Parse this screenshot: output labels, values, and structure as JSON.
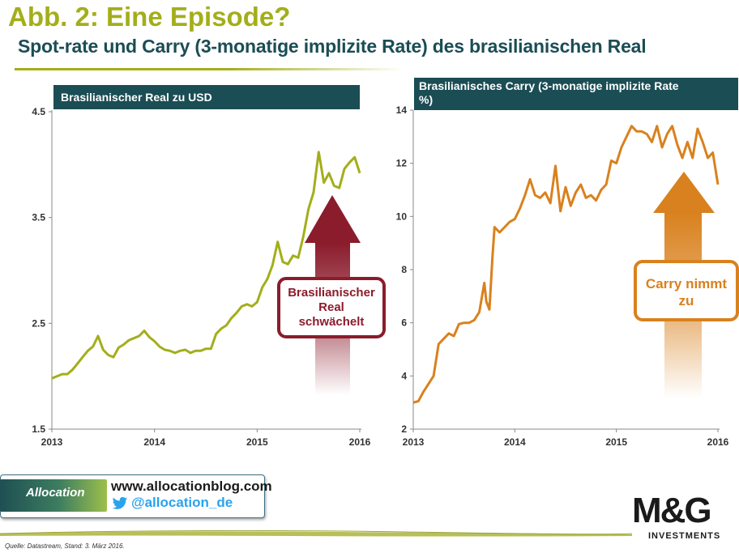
{
  "header": {
    "title": "Abb. 2: Eine Episode?",
    "subtitle": "Spot-rate und Carry (3-monatige implizite Rate) des brasilianischen Real"
  },
  "colors": {
    "title_green": "#a3ae1a",
    "teal": "#1b4d55",
    "brl_line": "#a3ae1a",
    "carry_line": "#d9811e",
    "arrow_red": "#8b1c2c",
    "arrow_orange": "#d9811e"
  },
  "chart_data": [
    {
      "type": "line",
      "title": "Brasilianischer Real zu USD",
      "xlabel": "",
      "ylabel": "",
      "x_ticks": [
        "2013",
        "2014",
        "2015",
        "2016"
      ],
      "y_ticks": [
        "1.5",
        "2.5",
        "3.5",
        "4.5"
      ],
      "xlim": [
        2013.0,
        2016.0
      ],
      "ylim": [
        1.5,
        4.5
      ],
      "grid": false,
      "series": [
        {
          "x": [
            2013.0,
            2013.05,
            2013.1,
            2013.15,
            2013.2,
            2013.25,
            2013.3,
            2013.35,
            2013.4,
            2013.45,
            2013.5,
            2013.55,
            2013.6,
            2013.65,
            2013.7,
            2013.75,
            2013.8,
            2013.85,
            2013.9,
            2013.95,
            2014.0,
            2014.05,
            2014.1,
            2014.15,
            2014.2,
            2014.25,
            2014.3,
            2014.35,
            2014.4,
            2014.45,
            2014.5,
            2014.55,
            2014.6,
            2014.65,
            2014.7,
            2014.75,
            2014.8,
            2014.85,
            2014.9,
            2014.95,
            2015.0,
            2015.05,
            2015.1,
            2015.15,
            2015.2,
            2015.25,
            2015.3,
            2015.35,
            2015.4,
            2015.45,
            2015.5,
            2015.55,
            2015.6,
            2015.65,
            2015.7,
            2015.75,
            2015.8,
            2015.85,
            2015.9,
            2015.95,
            2016.0
          ],
          "values": [
            1.98,
            2.0,
            2.02,
            2.02,
            2.06,
            2.12,
            2.18,
            2.24,
            2.28,
            2.38,
            2.25,
            2.2,
            2.18,
            2.27,
            2.3,
            2.34,
            2.36,
            2.38,
            2.43,
            2.37,
            2.33,
            2.28,
            2.25,
            2.24,
            2.22,
            2.24,
            2.25,
            2.22,
            2.24,
            2.24,
            2.26,
            2.26,
            2.4,
            2.45,
            2.48,
            2.55,
            2.6,
            2.66,
            2.68,
            2.66,
            2.7,
            2.84,
            2.92,
            3.05,
            3.27,
            3.08,
            3.06,
            3.14,
            3.12,
            3.32,
            3.58,
            3.74,
            4.12,
            3.83,
            3.92,
            3.8,
            3.78,
            3.96,
            4.02,
            4.07,
            3.92
          ]
        }
      ]
    },
    {
      "type": "line",
      "title": "Brasilianisches Carry (3-monatige implizite Rate %)",
      "xlabel": "",
      "ylabel": "",
      "x_ticks": [
        "2013",
        "2014",
        "2015",
        "2016"
      ],
      "y_ticks": [
        "2",
        "4",
        "6",
        "8",
        "10",
        "12",
        "14"
      ],
      "xlim": [
        2013.0,
        2016.0
      ],
      "ylim": [
        2,
        14
      ],
      "grid": false,
      "series": [
        {
          "x": [
            2013.0,
            2013.05,
            2013.1,
            2013.15,
            2013.2,
            2013.25,
            2013.3,
            2013.35,
            2013.4,
            2013.45,
            2013.5,
            2013.55,
            2013.6,
            2013.65,
            2013.7,
            2013.72,
            2013.75,
            2013.78,
            2013.8,
            2013.85,
            2013.9,
            2013.95,
            2014.0,
            2014.05,
            2014.1,
            2014.15,
            2014.2,
            2014.25,
            2014.3,
            2014.35,
            2014.4,
            2014.45,
            2014.5,
            2014.55,
            2014.6,
            2014.65,
            2014.7,
            2014.75,
            2014.8,
            2014.85,
            2014.9,
            2014.95,
            2015.0,
            2015.05,
            2015.1,
            2015.15,
            2015.2,
            2015.25,
            2015.3,
            2015.35,
            2015.4,
            2015.45,
            2015.5,
            2015.55,
            2015.6,
            2015.65,
            2015.7,
            2015.75,
            2015.8,
            2015.85,
            2015.9,
            2015.95,
            2016.0
          ],
          "values": [
            3.0,
            3.05,
            3.4,
            3.7,
            4.0,
            5.2,
            5.4,
            5.6,
            5.5,
            5.95,
            6.0,
            6.0,
            6.1,
            6.4,
            7.5,
            6.8,
            6.5,
            8.5,
            9.6,
            9.4,
            9.6,
            9.8,
            9.9,
            10.3,
            10.8,
            11.4,
            10.8,
            10.7,
            10.9,
            10.5,
            11.9,
            10.2,
            11.1,
            10.4,
            10.9,
            11.2,
            10.7,
            10.8,
            10.6,
            11.0,
            11.2,
            12.1,
            12.0,
            12.6,
            13.0,
            13.4,
            13.2,
            13.2,
            13.1,
            12.8,
            13.4,
            12.6,
            13.1,
            13.4,
            12.7,
            12.2,
            12.8,
            12.2,
            13.3,
            12.8,
            12.2,
            12.4,
            11.2
          ]
        }
      ]
    }
  ],
  "callouts": {
    "left": [
      "Brasilianischer",
      "Real",
      "schwächelt"
    ],
    "right": [
      "Carry nimmt",
      "zu"
    ]
  },
  "footer": {
    "logo_name": "Allocation",
    "blog_url": "www.allocationblog.com",
    "twitter_handle": "@allocation_de",
    "mg_logo": "M&G",
    "mg_sub": "INVESTMENTS",
    "source": "Quelle: Datastream,  Stand: 3. März 2016."
  }
}
